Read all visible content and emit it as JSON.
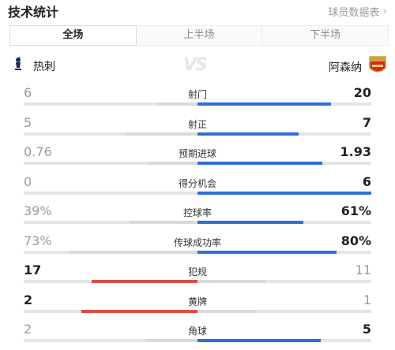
{
  "header": {
    "title": "技术统计",
    "link": "球员数据表"
  },
  "tabs": [
    {
      "label": "全场",
      "active": true
    },
    {
      "label": "上半场",
      "active": false
    },
    {
      "label": "下半场",
      "active": false
    }
  ],
  "teams": {
    "home": {
      "name": "热刺",
      "icon": "tottenham-crest-icon"
    },
    "away": {
      "name": "阿森纳",
      "icon": "arsenal-crest-icon"
    },
    "vs": "VS"
  },
  "colors": {
    "home_win": "#e04b46",
    "away_win": "#2e6fd9",
    "track": "#e5e5e5"
  },
  "stats": [
    {
      "label": "射门",
      "home": "6",
      "away": "20",
      "home_ratio": 0.23,
      "away_ratio": 0.77,
      "leader": "away"
    },
    {
      "label": "射正",
      "home": "5",
      "away": "7",
      "home_ratio": 0.42,
      "away_ratio": 0.58,
      "leader": "away"
    },
    {
      "label": "预期进球",
      "home": "0.76",
      "away": "1.93",
      "home_ratio": 0.28,
      "away_ratio": 0.72,
      "leader": "away"
    },
    {
      "label": "得分机会",
      "home": "0",
      "away": "6",
      "home_ratio": 0.0,
      "away_ratio": 1.0,
      "leader": "away"
    },
    {
      "label": "控球率",
      "home": "39%",
      "away": "61%",
      "home_ratio": 0.39,
      "away_ratio": 0.61,
      "leader": "away"
    },
    {
      "label": "传球成功率",
      "home": "73%",
      "away": "80%",
      "home_ratio": 0.73,
      "away_ratio": 0.8,
      "leader": "away"
    },
    {
      "label": "犯规",
      "home": "17",
      "away": "11",
      "home_ratio": 0.61,
      "away_ratio": 0.39,
      "leader": "home"
    },
    {
      "label": "黄牌",
      "home": "2",
      "away": "1",
      "home_ratio": 0.67,
      "away_ratio": 0.33,
      "leader": "home"
    },
    {
      "label": "角球",
      "home": "2",
      "away": "5",
      "home_ratio": 0.29,
      "away_ratio": 0.71,
      "leader": "away"
    }
  ]
}
